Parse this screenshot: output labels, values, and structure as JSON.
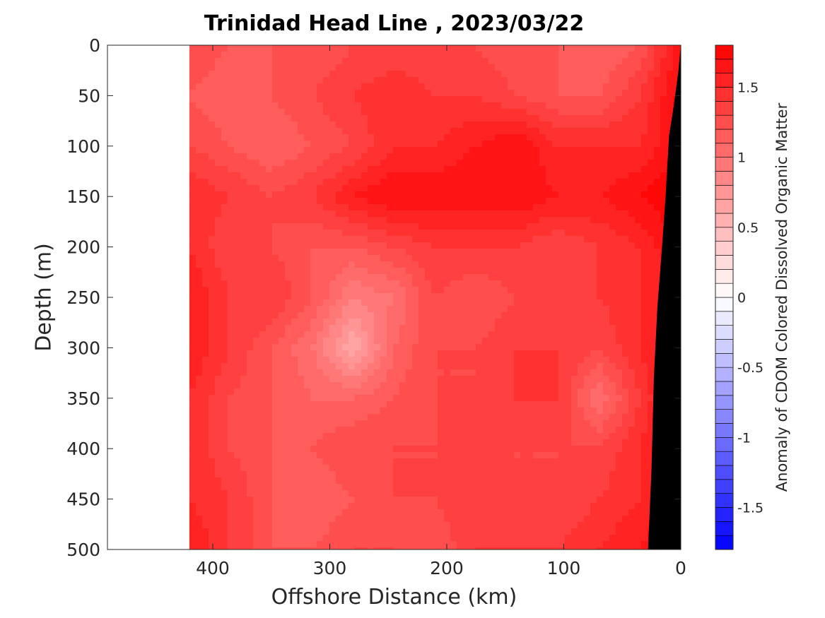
{
  "chart_data": {
    "type": "heatmap",
    "title": "Trinidad Head Line , 2023/03/22",
    "xlabel": "Offshore Distance (km)",
    "ylabel": "Depth (m)",
    "colorbar_label": "Anomaly of CDOM Colored Dissolved Organic Matter",
    "x_reversed": true,
    "xlim": [
      490,
      0
    ],
    "ylim": [
      0,
      500
    ],
    "y_reversed": true,
    "x_ticks": [
      "400",
      "300",
      "200",
      "100",
      "0"
    ],
    "x_tick_values": [
      400,
      300,
      200,
      100,
      0
    ],
    "y_ticks": [
      "0",
      "50",
      "100",
      "150",
      "200",
      "250",
      "300",
      "350",
      "400",
      "450",
      "500"
    ],
    "y_tick_values": [
      0,
      50,
      100,
      150,
      200,
      250,
      300,
      350,
      400,
      450,
      500
    ],
    "colorbar_ticks": [
      "1.5",
      "1",
      "0.5",
      "0",
      "-0.5",
      "-1",
      "-1.5"
    ],
    "colorbar_tick_values": [
      1.5,
      1,
      0.5,
      0,
      -0.5,
      -1,
      -1.5
    ],
    "clim": [
      -1.8,
      1.8
    ],
    "colormap": {
      "low": "#0000ff",
      "mid": "#ffffff",
      "high": "#ff0000"
    },
    "data_extent_km": [
      0,
      420
    ],
    "bathymetry": {
      "color": "#000000",
      "points": [
        [
          0,
          0
        ],
        [
          2,
          25
        ],
        [
          6,
          60
        ],
        [
          10,
          90
        ],
        [
          13,
          150
        ],
        [
          16,
          200
        ],
        [
          20,
          260
        ],
        [
          23,
          330
        ],
        [
          25,
          420
        ],
        [
          28,
          500
        ]
      ]
    },
    "anomaly_grid": {
      "x_km": [
        420,
        385,
        350,
        315,
        280,
        245,
        210,
        175,
        140,
        105,
        70,
        35,
        5
      ],
      "depth_m": [
        0,
        50,
        100,
        150,
        200,
        250,
        300,
        350,
        400,
        450,
        500
      ],
      "values": [
        [
          1.3,
          1.2,
          1.2,
          1.2,
          1.3,
          1.3,
          1.3,
          1.3,
          1.2,
          1.2,
          1.1,
          1.2,
          1.6
        ],
        [
          1.2,
          1.1,
          1.2,
          1.3,
          1.4,
          1.5,
          1.4,
          1.4,
          1.3,
          1.2,
          1.2,
          1.4,
          1.7
        ],
        [
          1.3,
          1.2,
          1.1,
          1.2,
          1.3,
          1.5,
          1.5,
          1.6,
          1.7,
          1.5,
          1.5,
          1.5,
          1.7
        ],
        [
          1.5,
          1.4,
          1.3,
          1.4,
          1.6,
          1.7,
          1.7,
          1.7,
          1.7,
          1.6,
          1.6,
          1.7,
          1.8
        ],
        [
          1.5,
          1.3,
          1.3,
          1.2,
          1.2,
          1.3,
          1.4,
          1.4,
          1.4,
          1.3,
          1.4,
          1.5,
          1.7
        ],
        [
          1.6,
          1.4,
          1.4,
          1.2,
          0.9,
          1.0,
          1.3,
          1.2,
          1.3,
          1.4,
          1.4,
          1.5,
          1.7
        ],
        [
          1.6,
          1.4,
          1.2,
          1.0,
          0.6,
          1.1,
          1.3,
          1.3,
          1.4,
          1.4,
          1.3,
          1.5,
          1.7
        ],
        [
          1.5,
          1.3,
          1.2,
          1.1,
          1.1,
          1.2,
          1.3,
          1.3,
          1.4,
          1.4,
          1.0,
          1.4,
          1.7
        ],
        [
          1.5,
          1.3,
          1.2,
          1.2,
          1.3,
          1.3,
          1.3,
          1.4,
          1.3,
          1.3,
          1.3,
          1.5,
          1.7
        ],
        [
          1.5,
          1.4,
          1.2,
          1.1,
          1.2,
          1.3,
          1.3,
          1.4,
          1.3,
          1.3,
          1.4,
          1.5,
          1.7
        ],
        [
          1.6,
          1.4,
          1.2,
          1.2,
          1.3,
          1.3,
          1.2,
          1.4,
          1.4,
          1.4,
          1.5,
          1.6,
          1.7
        ]
      ]
    }
  }
}
